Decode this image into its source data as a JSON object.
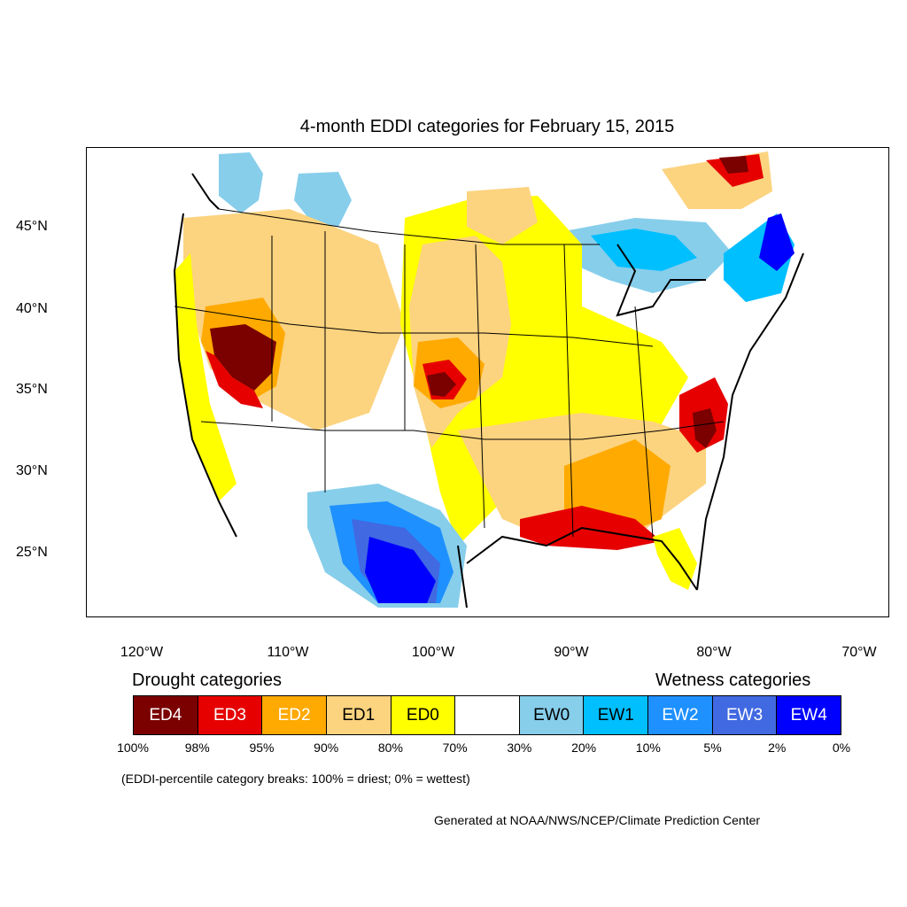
{
  "title": "4-month EDDI categories for February 15, 2015",
  "map": {
    "lat_labels": [
      "45°N",
      "40°N",
      "35°N",
      "30°N",
      "25°N"
    ],
    "lon_labels": [
      "120°W",
      "110°W",
      "100°W",
      "90°W",
      "80°W",
      "70°W"
    ],
    "extent": {
      "lon_min": -124,
      "lon_max": -68.5,
      "lat_min": 21,
      "lat_max": 49.5
    }
  },
  "legend": {
    "drought_title": "Drought categories",
    "wetness_title": "Wetness categories",
    "categories": [
      {
        "label": "ED4",
        "color": "#7b0000",
        "text_color": "#ffffff"
      },
      {
        "label": "ED3",
        "color": "#e60000",
        "text_color": "#ffffff"
      },
      {
        "label": "ED2",
        "color": "#ffaa00",
        "text_color": "#ffffff"
      },
      {
        "label": "ED1",
        "color": "#fcd37f",
        "text_color": "#000000"
      },
      {
        "label": "ED0",
        "color": "#ffff00",
        "text_color": "#000000"
      },
      {
        "label": "",
        "color": "#ffffff",
        "text_color": "#000000"
      },
      {
        "label": "EW0",
        "color": "#87ceeb",
        "text_color": "#000000"
      },
      {
        "label": "EW1",
        "color": "#00bfff",
        "text_color": "#000000"
      },
      {
        "label": "EW2",
        "color": "#1e90ff",
        "text_color": "#ffffff"
      },
      {
        "label": "EW3",
        "color": "#4169e1",
        "text_color": "#ffffff"
      },
      {
        "label": "EW4",
        "color": "#0000ff",
        "text_color": "#ffffff"
      }
    ],
    "breaks": [
      "100%",
      "98%",
      "95%",
      "90%",
      "80%",
      "70%",
      "30%",
      "20%",
      "10%",
      "5%",
      "2%",
      "0%"
    ]
  },
  "breaks_note": "(EDDI-percentile category breaks: 100% = driest; 0% = wettest)",
  "credit": "Generated at NOAA/NWS/NCEP/Climate Prediction Center"
}
